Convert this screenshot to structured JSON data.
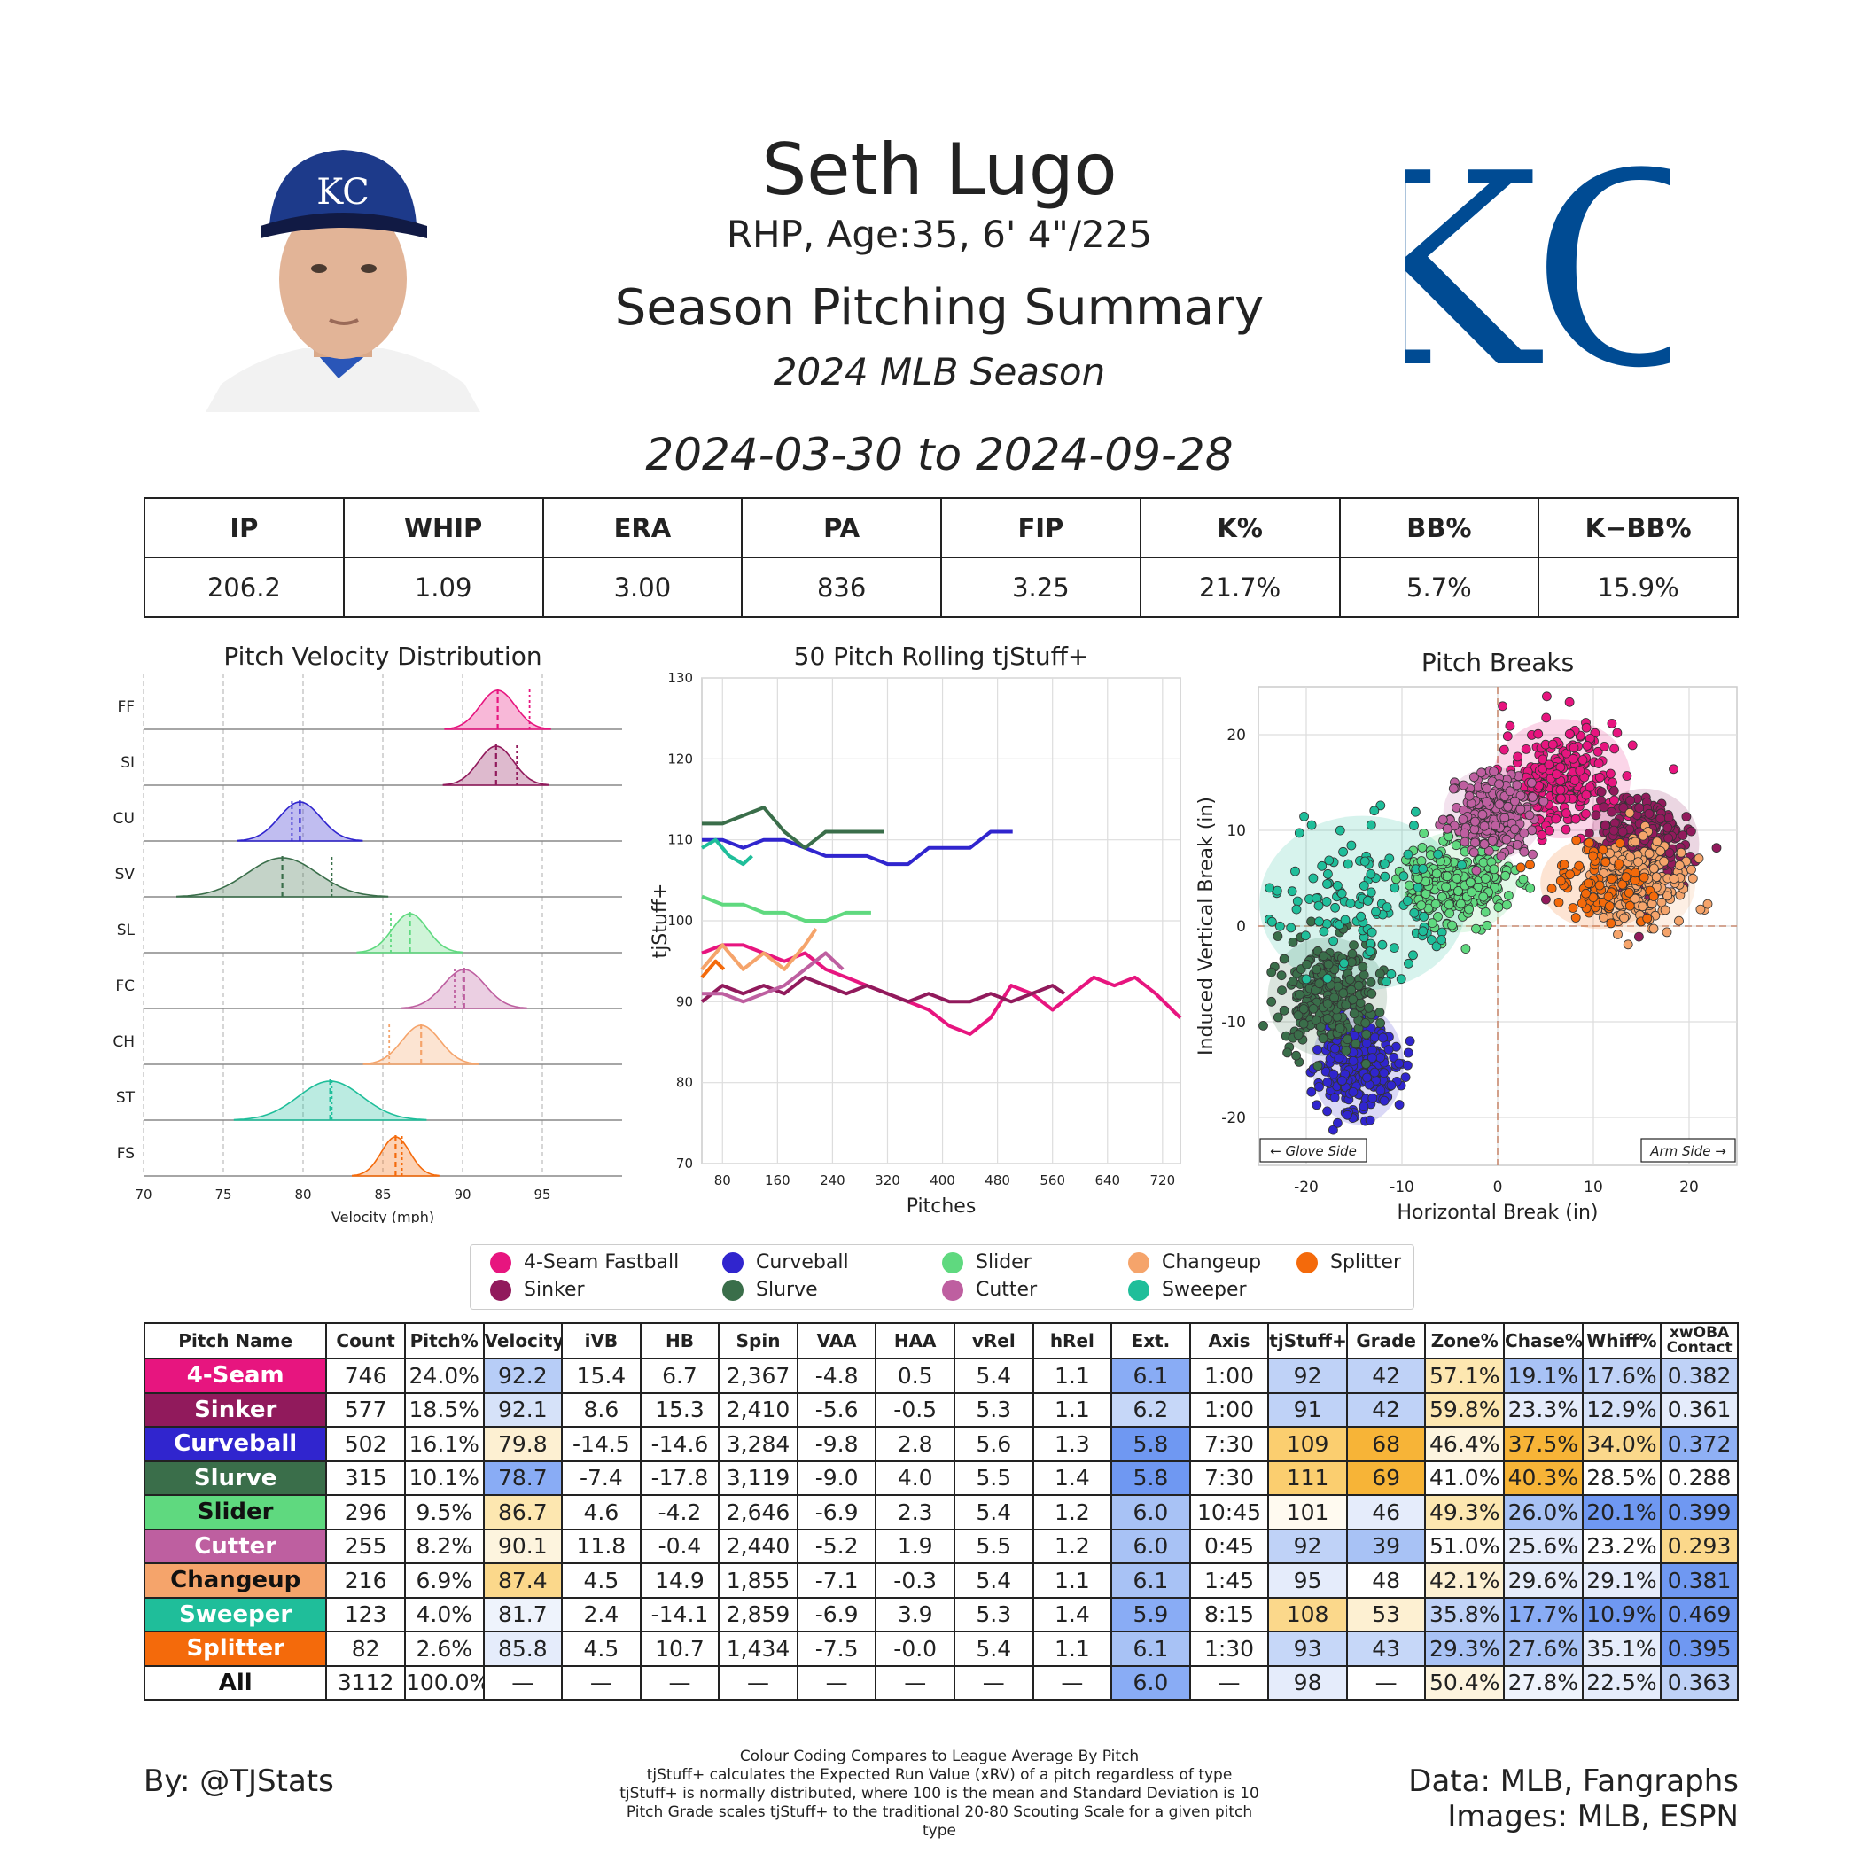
{
  "header": {
    "name": "Seth Lugo",
    "info": "RHP, Age:35, 6' 4\"/225",
    "summary_title": "Season Pitching Summary",
    "season": "2024 MLB Season",
    "date_range": "2024-03-30 to 2024-09-28",
    "team_logo_text": "KC"
  },
  "stats": {
    "headers": [
      "IP",
      "WHIP",
      "ERA",
      "PA",
      "FIP",
      "K%",
      "BB%",
      "K−BB%"
    ],
    "values": [
      "206.2",
      "1.09",
      "3.00",
      "836",
      "3.25",
      "21.7%",
      "5.7%",
      "15.9%"
    ]
  },
  "chart_data": [
    {
      "type": "area",
      "title": "Pitch Velocity Distribution",
      "xlabel": "Velocity (mph)",
      "xlim": [
        70,
        100
      ],
      "xticks": [
        "70",
        "75",
        "80",
        "85",
        "90",
        "95"
      ],
      "series": [
        {
          "name": "FF",
          "color": "#e7157f",
          "mean": 92.2,
          "sd": 1.1,
          "league_avg": 94.2
        },
        {
          "name": "SI",
          "color": "#911a5c",
          "mean": 92.1,
          "sd": 1.1,
          "league_avg": 93.4
        },
        {
          "name": "CU",
          "color": "#3025ce",
          "mean": 79.8,
          "sd": 1.3,
          "league_avg": 79.3
        },
        {
          "name": "SV",
          "color": "#3a6e4a",
          "mean": 78.7,
          "sd": 2.2,
          "league_avg": 81.8
        },
        {
          "name": "SL",
          "color": "#5fd97f",
          "mean": 86.7,
          "sd": 1.1,
          "league_avg": 85.5
        },
        {
          "name": "FC",
          "color": "#be5fa0",
          "mean": 90.1,
          "sd": 1.3,
          "league_avg": 89.5
        },
        {
          "name": "CH",
          "color": "#f5a46b",
          "mean": 87.4,
          "sd": 1.2,
          "league_avg": 85.4
        },
        {
          "name": "ST",
          "color": "#1fbe9a",
          "mean": 81.7,
          "sd": 2.0,
          "league_avg": 81.8
        },
        {
          "name": "FS",
          "color": "#f46a0b",
          "mean": 85.8,
          "sd": 0.9,
          "league_avg": 86.2
        }
      ]
    },
    {
      "type": "line",
      "title": "50 Pitch Rolling tjStuff+",
      "xlabel": "Pitches",
      "ylabel": "tjStuff+",
      "ylim": [
        70,
        130
      ],
      "yticks": [
        "70",
        "80",
        "90",
        "100",
        "110",
        "120",
        "130"
      ],
      "xticks": [
        "80",
        "160",
        "240",
        "320",
        "400",
        "480",
        "560",
        "640",
        "720"
      ],
      "series": [
        {
          "name": "4-Seam Fastball",
          "color": "#e7157f",
          "x": [
            50,
            80,
            110,
            140,
            170,
            200,
            230,
            260,
            290,
            320,
            350,
            380,
            410,
            440,
            470,
            500,
            530,
            560,
            590,
            620,
            650,
            680,
            710,
            746
          ],
          "y": [
            96,
            97,
            97,
            96,
            95,
            96,
            94,
            93,
            92,
            91,
            90,
            89,
            87,
            86,
            88,
            92,
            91,
            89,
            91,
            93,
            92,
            93,
            91,
            88
          ]
        },
        {
          "name": "Sinker",
          "color": "#911a5c",
          "x": [
            50,
            80,
            110,
            140,
            170,
            200,
            230,
            260,
            290,
            320,
            350,
            380,
            410,
            440,
            470,
            500,
            530,
            560,
            577
          ],
          "y": [
            90,
            92,
            91,
            92,
            91,
            93,
            92,
            91,
            92,
            91,
            90,
            91,
            90,
            90,
            91,
            90,
            91,
            92,
            91
          ]
        },
        {
          "name": "Curveball",
          "color": "#3025ce",
          "x": [
            50,
            80,
            110,
            140,
            170,
            200,
            230,
            260,
            290,
            320,
            350,
            380,
            410,
            440,
            470,
            502
          ],
          "y": [
            110,
            110,
            109,
            110,
            110,
            109,
            108,
            108,
            108,
            107,
            107,
            109,
            109,
            109,
            111,
            111
          ]
        },
        {
          "name": "Slurve",
          "color": "#3a6e4a",
          "x": [
            50,
            80,
            110,
            140,
            170,
            200,
            230,
            260,
            290,
            315
          ],
          "y": [
            112,
            112,
            113,
            114,
            111,
            109,
            111,
            111,
            111,
            111
          ]
        },
        {
          "name": "Slider",
          "color": "#5fd97f",
          "x": [
            50,
            80,
            110,
            140,
            170,
            200,
            230,
            260,
            296
          ],
          "y": [
            103,
            102,
            102,
            101,
            101,
            100,
            100,
            101,
            101
          ]
        },
        {
          "name": "Cutter",
          "color": "#be5fa0",
          "x": [
            50,
            80,
            110,
            140,
            170,
            200,
            230,
            255
          ],
          "y": [
            91,
            91,
            90,
            91,
            92,
            94,
            96,
            94
          ]
        },
        {
          "name": "Changeup",
          "color": "#f5a46b",
          "x": [
            50,
            80,
            110,
            140,
            170,
            200,
            216
          ],
          "y": [
            94,
            97,
            94,
            96,
            94,
            97,
            99
          ]
        },
        {
          "name": "Sweeper",
          "color": "#1fbe9a",
          "x": [
            50,
            70,
            90,
            110,
            123
          ],
          "y": [
            109,
            110,
            108,
            107,
            108
          ]
        },
        {
          "name": "Splitter",
          "color": "#f46a0b",
          "x": [
            50,
            60,
            70,
            82
          ],
          "y": [
            93,
            94,
            95,
            94
          ]
        }
      ]
    },
    {
      "type": "scatter",
      "title": "Pitch Breaks",
      "xlabel": "Horizontal Break (in)",
      "ylabel": "Induced Vertical Break (in)",
      "xlim": [
        -25,
        25
      ],
      "ylim": [
        -25,
        25
      ],
      "xticks": [
        "-20",
        "-10",
        "0",
        "10",
        "20"
      ],
      "yticks": [
        "-20",
        "-10",
        "0",
        "10",
        "20"
      ],
      "annotations": [
        "← Glove Side",
        "Arm Side →"
      ],
      "series": [
        {
          "name": "4-Seam Fastball",
          "color": "#e7157f",
          "mean_x": 6.7,
          "mean_y": 15.4,
          "sd_x": 3.0,
          "sd_y": 2.6,
          "n": 746
        },
        {
          "name": "Sinker",
          "color": "#911a5c",
          "mean_x": 15.3,
          "mean_y": 8.6,
          "sd_x": 2.4,
          "sd_y": 2.4,
          "n": 577
        },
        {
          "name": "Curveball",
          "color": "#3025ce",
          "mean_x": -14.6,
          "mean_y": -14.5,
          "sd_x": 2.0,
          "sd_y": 2.6,
          "n": 502
        },
        {
          "name": "Slurve",
          "color": "#3a6e4a",
          "mean_x": -17.8,
          "mean_y": -7.4,
          "sd_x": 2.6,
          "sd_y": 2.6,
          "n": 315
        },
        {
          "name": "Slider",
          "color": "#5fd97f",
          "mean_x": -4.2,
          "mean_y": 4.6,
          "sd_x": 2.6,
          "sd_y": 2.2,
          "n": 296
        },
        {
          "name": "Cutter",
          "color": "#be5fa0",
          "mean_x": -0.4,
          "mean_y": 11.8,
          "sd_x": 2.2,
          "sd_y": 2.0,
          "n": 255
        },
        {
          "name": "Changeup",
          "color": "#f5a46b",
          "mean_x": 14.9,
          "mean_y": 4.5,
          "sd_x": 2.4,
          "sd_y": 2.2,
          "n": 216
        },
        {
          "name": "Sweeper",
          "color": "#1fbe9a",
          "mean_x": -14.1,
          "mean_y": 2.4,
          "sd_x": 4.5,
          "sd_y": 3.8,
          "n": 123
        },
        {
          "name": "Splitter",
          "color": "#f46a0b",
          "mean_x": 10.7,
          "mean_y": 4.5,
          "sd_x": 2.6,
          "sd_y": 2.0,
          "n": 82
        }
      ]
    }
  ],
  "legend": [
    {
      "label": "4-Seam Fastball",
      "color": "#e7157f"
    },
    {
      "label": "Sinker",
      "color": "#911a5c"
    },
    {
      "label": "Curveball",
      "color": "#3025ce"
    },
    {
      "label": "Slurve",
      "color": "#3a6e4a"
    },
    {
      "label": "Slider",
      "color": "#5fd97f"
    },
    {
      "label": "Cutter",
      "color": "#be5fa0"
    },
    {
      "label": "Changeup",
      "color": "#f5a46b"
    },
    {
      "label": "Sweeper",
      "color": "#1fbe9a"
    },
    {
      "label": "Splitter",
      "color": "#f46a0b"
    }
  ],
  "pitch_table": {
    "headers": [
      "Pitch Name",
      "Count",
      "Pitch%",
      "Velocity",
      "iVB",
      "HB",
      "Spin",
      "VAA",
      "HAA",
      "vRel",
      "hRel",
      "Ext.",
      "Axis",
      "tjStuff+",
      "Grade",
      "Zone%",
      "Chase%",
      "Whiff%",
      "xwOBA Contact"
    ],
    "rows": [
      {
        "name": "4-Seam",
        "color": "#e7157f",
        "text_color": "#ffffff",
        "cells": [
          "746",
          "24.0%",
          "92.2",
          "15.4",
          "6.7",
          "2,367",
          "-4.8",
          "0.5",
          "5.4",
          "1.1",
          "6.1",
          "1:00",
          "92",
          "42",
          "57.1%",
          "19.1%",
          "17.6%",
          "0.382"
        ],
        "shades": {
          "Velocity": "#b7cdf7",
          "Ext.": "#89acf5",
          "tjStuff+": "#bfd2f7",
          "Grade": "#bfd2f7",
          "Zone%": "#fde7b0",
          "Chase%": "#a8c2f5",
          "Whiff%": "#bfd2f7",
          "xwOBA Contact": "#bfd2f7"
        }
      },
      {
        "name": "Sinker",
        "color": "#911a5c",
        "text_color": "#ffffff",
        "cells": [
          "577",
          "18.5%",
          "92.1",
          "8.6",
          "15.3",
          "2,410",
          "-5.6",
          "-0.5",
          "5.3",
          "1.1",
          "6.2",
          "1:00",
          "91",
          "42",
          "59.8%",
          "23.3%",
          "12.9%",
          "0.361"
        ],
        "shades": {
          "Velocity": "#d6e2f9",
          "Ext.": "#c6d7f8",
          "tjStuff+": "#bfd2f7",
          "Grade": "#bfd2f7",
          "Zone%": "#fde7b0",
          "Chase%": "#e5ecfb",
          "Whiff%": "#d6e2f9",
          "xwOBA Contact": "#e5ecfb"
        }
      },
      {
        "name": "Curveball",
        "color": "#3025ce",
        "text_color": "#ffffff",
        "cells": [
          "502",
          "16.1%",
          "79.8",
          "-14.5",
          "-14.6",
          "3,284",
          "-9.8",
          "2.8",
          "5.6",
          "1.3",
          "5.8",
          "7:30",
          "109",
          "68",
          "46.4%",
          "37.5%",
          "34.0%",
          "0.372"
        ],
        "shades": {
          "Velocity": "#fdf0d2",
          "Ext.": "#6f98f2",
          "tjStuff+": "#fbce6f",
          "Grade": "#f7b437",
          "Zone%": "#fdf4de",
          "Chase%": "#f7b437",
          "Whiff%": "#fbd88b",
          "xwOBA Contact": "#8fb0f5"
        }
      },
      {
        "name": "Slurve",
        "color": "#3a6e4a",
        "text_color": "#ffffff",
        "cells": [
          "315",
          "10.1%",
          "78.7",
          "-7.4",
          "-17.8",
          "3,119",
          "-9.0",
          "4.0",
          "5.5",
          "1.4",
          "5.8",
          "7:30",
          "111",
          "69",
          "41.0%",
          "40.3%",
          "28.5%",
          "0.288"
        ],
        "shades": {
          "Velocity": "#89acf5",
          "Ext.": "#6f98f2",
          "tjStuff+": "#fbce6f",
          "Grade": "#f7b437",
          "Zone%": "#ffffff",
          "Chase%": "#f7b437",
          "Whiff%": "#ffffff",
          "xwOBA Contact": "#ffffff"
        }
      },
      {
        "name": "Slider",
        "color": "#5fd97f",
        "text_color": "#111111",
        "cells": [
          "296",
          "9.5%",
          "86.7",
          "4.6",
          "-4.2",
          "2,646",
          "-6.9",
          "2.3",
          "5.4",
          "1.2",
          "6.0",
          "10:45",
          "101",
          "46",
          "49.3%",
          "26.0%",
          "20.1%",
          "0.399"
        ],
        "shades": {
          "Velocity": "#fde7b0",
          "Ext.": "#a8c2f5",
          "tjStuff+": "#fffaf0",
          "Grade": "#e5ecfb",
          "Zone%": "#fde7b0",
          "Chase%": "#a8c2f5",
          "Whiff%": "#6f98f2",
          "xwOBA Contact": "#6f98f2"
        }
      },
      {
        "name": "Cutter",
        "color": "#be5fa0",
        "text_color": "#ffffff",
        "cells": [
          "255",
          "8.2%",
          "90.1",
          "11.8",
          "-0.4",
          "2,440",
          "-5.2",
          "1.9",
          "5.5",
          "1.2",
          "6.0",
          "0:45",
          "92",
          "39",
          "51.0%",
          "25.6%",
          "23.2%",
          "0.293"
        ],
        "shades": {
          "Velocity": "#fdf4de",
          "Ext.": "#a8c2f5",
          "tjStuff+": "#bfd2f7",
          "Grade": "#a8c2f5",
          "Zone%": "#ffffff",
          "Chase%": "#e5ecfb",
          "Whiff%": "#ffffff",
          "xwOBA Contact": "#fbd88b"
        }
      },
      {
        "name": "Changeup",
        "color": "#f5a46b",
        "text_color": "#111111",
        "cells": [
          "216",
          "6.9%",
          "87.4",
          "4.5",
          "14.9",
          "1,855",
          "-7.1",
          "-0.3",
          "5.4",
          "1.1",
          "6.1",
          "1:45",
          "95",
          "48",
          "42.1%",
          "29.6%",
          "29.1%",
          "0.381"
        ],
        "shades": {
          "Velocity": "#fbd88b",
          "Ext.": "#a8c2f5",
          "tjStuff+": "#e5ecfb",
          "Grade": "#ffffff",
          "Zone%": "#fdf0d2",
          "Chase%": "#e5ecfb",
          "Whiff%": "#e5ecfb",
          "xwOBA Contact": "#6f98f2"
        }
      },
      {
        "name": "Sweeper",
        "color": "#1fbe9a",
        "text_color": "#ffffff",
        "cells": [
          "123",
          "4.0%",
          "81.7",
          "2.4",
          "-14.1",
          "2,859",
          "-6.9",
          "3.9",
          "5.3",
          "1.4",
          "5.9",
          "8:15",
          "108",
          "53",
          "35.8%",
          "17.7%",
          "10.9%",
          "0.469"
        ],
        "shades": {
          "Velocity": "#eef3fc",
          "Ext.": "#89acf5",
          "tjStuff+": "#fbd88b",
          "Grade": "#fdf0d2",
          "Zone%": "#bfd2f7",
          "Chase%": "#89acf5",
          "Whiff%": "#6f98f2",
          "xwOBA Contact": "#6f98f2"
        }
      },
      {
        "name": "Splitter",
        "color": "#f46a0b",
        "text_color": "#ffffff",
        "cells": [
          "82",
          "2.6%",
          "85.8",
          "4.5",
          "10.7",
          "1,434",
          "-7.5",
          "-0.0",
          "5.4",
          "1.1",
          "6.1",
          "1:30",
          "93",
          "43",
          "29.3%",
          "27.6%",
          "35.1%",
          "0.395"
        ],
        "shades": {
          "Velocity": "#e5ecfb",
          "Ext.": "#a8c2f5",
          "tjStuff+": "#c6d7f8",
          "Grade": "#c6d7f8",
          "Zone%": "#a8c2f5",
          "Chase%": "#a8c2f5",
          "Whiff%": "#e5ecfb",
          "xwOBA Contact": "#6f98f2"
        }
      },
      {
        "name": "All",
        "color": "#ffffff",
        "text_color": "#111111",
        "cells": [
          "3112",
          "100.0%",
          "—",
          "—",
          "—",
          "—",
          "—",
          "—",
          "—",
          "—",
          "6.0",
          "—",
          "98",
          "—",
          "50.4%",
          "27.8%",
          "22.5%",
          "0.363"
        ],
        "shades": {
          "Ext.": "#89acf5",
          "tjStuff+": "#e5ecfb",
          "Zone%": "#fdf4de",
          "Chase%": "#eef3fc",
          "Whiff%": "#e5ecfb",
          "xwOBA Contact": "#bfd2f7"
        }
      }
    ]
  },
  "footer": {
    "by": "By: @TJStats",
    "notes": [
      "Colour Coding Compares to League Average By Pitch",
      "tjStuff+ calculates the Expected Run Value (xRV) of a pitch regardless of type",
      "tjStuff+ is normally distributed, where 100 is the mean and Standard Deviation is 10",
      "Pitch Grade scales tjStuff+ to the traditional 20-80 Scouting Scale for a given pitch type"
    ],
    "data_credit": "Data: MLB, Fangraphs",
    "images_credit": "Images: MLB, ESPN"
  },
  "colors": {
    "kc_blue": "#004b93",
    "cap_blue": "#1d3a8a"
  }
}
